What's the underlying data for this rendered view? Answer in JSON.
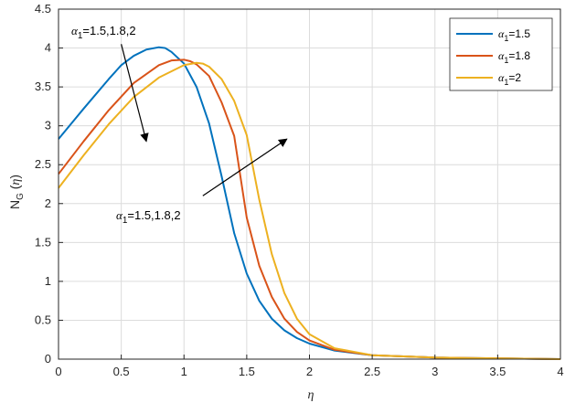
{
  "chart_data": {
    "type": "line",
    "xlabel": "η",
    "ylabel": "N_G (η)",
    "xlim": [
      0,
      4
    ],
    "ylim": [
      0,
      4.5
    ],
    "xticks": [
      0,
      0.5,
      1,
      1.5,
      2,
      2.5,
      3,
      3.5,
      4
    ],
    "yticks": [
      0,
      0.5,
      1,
      1.5,
      2,
      2.5,
      3,
      3.5,
      4,
      4.5
    ],
    "xtick_labels": [
      "0",
      "0.5",
      "1",
      "1.5",
      "2",
      "2.5",
      "3",
      "3.5",
      "4"
    ],
    "ytick_labels": [
      "0",
      "0.5",
      "1",
      "1.5",
      "2",
      "2.5",
      "3",
      "3.5",
      "4",
      "4.5"
    ],
    "grid": true,
    "legend_position": "top-right",
    "colors": {
      "s1": "#0072BD",
      "s2": "#D95319",
      "s3": "#EDB120"
    },
    "series": [
      {
        "name": "α1=1.5",
        "color": "#0072BD",
        "x": [
          0,
          0.2,
          0.4,
          0.5,
          0.6,
          0.7,
          0.8,
          0.85,
          0.9,
          1.0,
          1.1,
          1.2,
          1.3,
          1.4,
          1.5,
          1.6,
          1.7,
          1.8,
          1.9,
          2.0,
          2.2,
          2.5,
          3.0,
          3.5,
          4.0
        ],
        "y": [
          2.83,
          3.22,
          3.6,
          3.78,
          3.9,
          3.98,
          4.01,
          4.0,
          3.95,
          3.8,
          3.5,
          3.03,
          2.35,
          1.62,
          1.1,
          0.75,
          0.52,
          0.37,
          0.27,
          0.2,
          0.11,
          0.05,
          0.02,
          0.01,
          0.0
        ]
      },
      {
        "name": "α1=1.8",
        "color": "#D95319",
        "x": [
          0,
          0.2,
          0.4,
          0.6,
          0.8,
          0.9,
          1.0,
          1.05,
          1.1,
          1.2,
          1.3,
          1.4,
          1.5,
          1.6,
          1.7,
          1.8,
          1.9,
          2.0,
          2.2,
          2.5,
          3.0,
          3.5,
          4.0
        ],
        "y": [
          2.38,
          2.8,
          3.2,
          3.55,
          3.78,
          3.84,
          3.85,
          3.83,
          3.79,
          3.64,
          3.3,
          2.87,
          1.82,
          1.2,
          0.8,
          0.52,
          0.35,
          0.24,
          0.12,
          0.05,
          0.02,
          0.01,
          0.0
        ]
      },
      {
        "name": "α1=2",
        "color": "#EDB120",
        "x": [
          0,
          0.2,
          0.4,
          0.6,
          0.8,
          1.0,
          1.1,
          1.15,
          1.2,
          1.3,
          1.4,
          1.5,
          1.6,
          1.7,
          1.8,
          1.9,
          2.0,
          2.2,
          2.5,
          3.0,
          3.5,
          4.0
        ],
        "y": [
          2.2,
          2.62,
          3.02,
          3.37,
          3.62,
          3.78,
          3.81,
          3.8,
          3.76,
          3.6,
          3.32,
          2.88,
          2.05,
          1.35,
          0.85,
          0.52,
          0.32,
          0.14,
          0.05,
          0.02,
          0.01,
          0.0
        ]
      }
    ],
    "annotations": [
      {
        "text": "α1=1.5,1.8,2",
        "from": [
          0.5,
          4.05
        ],
        "to": [
          0.7,
          2.8
        ]
      },
      {
        "text": "α1=1.5,1.8,2",
        "from": [
          1.15,
          2.1
        ],
        "to": [
          1.82,
          2.83
        ]
      }
    ]
  }
}
